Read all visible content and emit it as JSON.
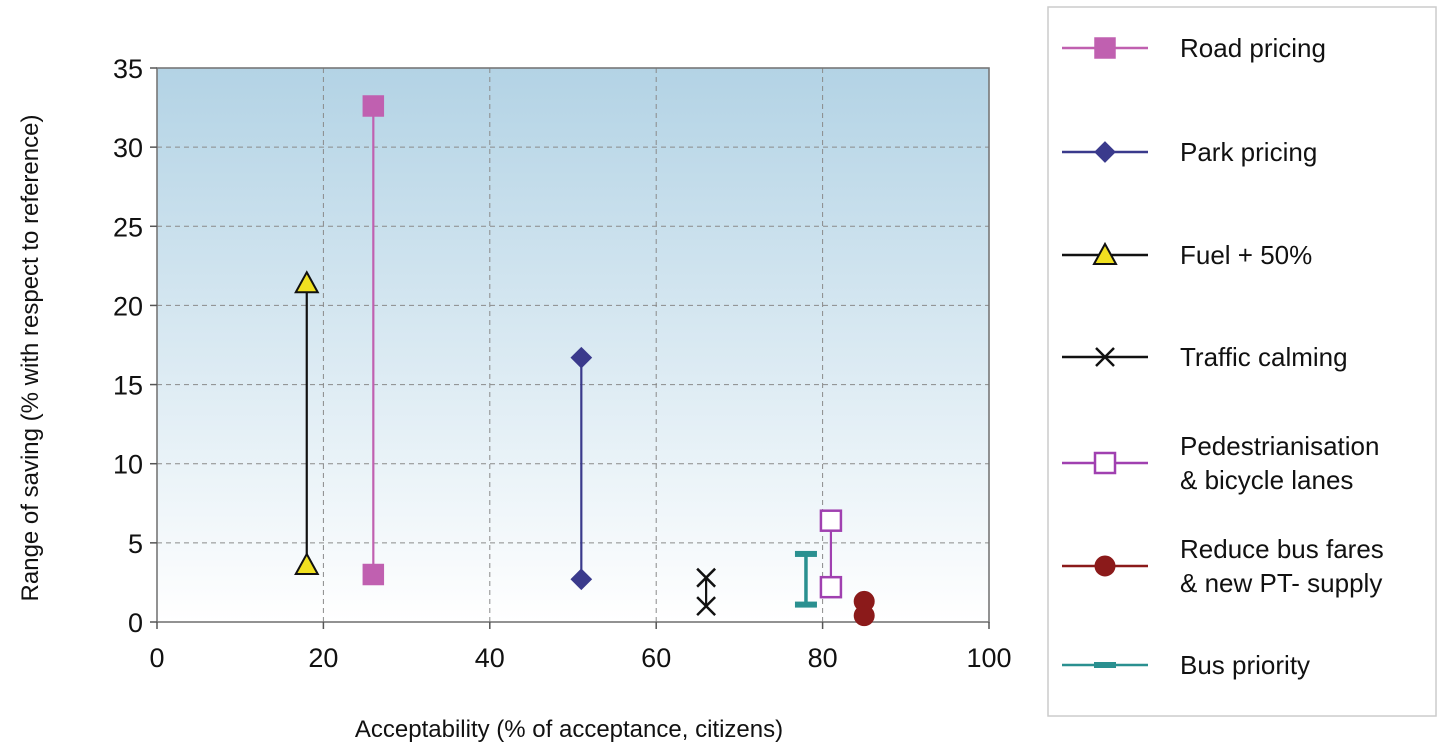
{
  "chart_data": {
    "type": "range-scatter",
    "xlabel": "Acceptability (% of acceptance, citizens)",
    "ylabel": "Range of saving (% with respect to reference)",
    "xlim": [
      0,
      100
    ],
    "ylim": [
      0,
      35
    ],
    "x_ticks": [
      0,
      20,
      40,
      60,
      80,
      100
    ],
    "y_ticks": [
      0,
      5,
      10,
      15,
      20,
      25,
      30,
      35
    ],
    "grid": true,
    "legend_position": "right",
    "series": [
      {
        "name": "Road pricing",
        "lines": [
          "Road pricing"
        ],
        "x": 26,
        "y_low": 3.0,
        "y_high": 32.6,
        "marker": "square",
        "color": "#c060b0",
        "marker_fill": "#c060b0"
      },
      {
        "name": "Park pricing",
        "lines": [
          "Park pricing"
        ],
        "x": 51,
        "y_low": 2.7,
        "y_high": 16.7,
        "marker": "diamond",
        "color": "#3a3a8c",
        "marker_fill": "#3a3a8c"
      },
      {
        "name": "Fuel + 50%",
        "lines": [
          "Fuel + 50%"
        ],
        "x": 18,
        "y_low": 3.6,
        "y_high": 21.4,
        "marker": "triangle",
        "color": "#111111",
        "marker_fill": "#f0e020"
      },
      {
        "name": "Traffic calming",
        "lines": [
          "Traffic calming"
        ],
        "x": 66,
        "y_low": 1.0,
        "y_high": 2.8,
        "marker": "x",
        "color": "#111111",
        "marker_fill": "none"
      },
      {
        "name": "Pedestrianisation & bicycle lanes",
        "lines": [
          "Pedestrianisation",
          "& bicycle lanes"
        ],
        "x": 81,
        "y_low": 2.2,
        "y_high": 6.4,
        "marker": "open-square",
        "color": "#a040b0",
        "marker_fill": "#ffffff"
      },
      {
        "name": "Reduce bus fares & new PT- supply",
        "lines": [
          "Reduce bus  fares",
          "& new PT- supply"
        ],
        "x": 85,
        "y_low": 0.4,
        "y_high": 1.3,
        "marker": "circle",
        "color": "#8b1a1a",
        "marker_fill": "#8b1a1a"
      },
      {
        "name": "Bus priority",
        "lines": [
          "Bus priority"
        ],
        "x": 78,
        "y_low": 1.1,
        "y_high": 4.3,
        "marker": "dash",
        "color": "#2a9090",
        "marker_fill": "#2a9090"
      }
    ]
  }
}
